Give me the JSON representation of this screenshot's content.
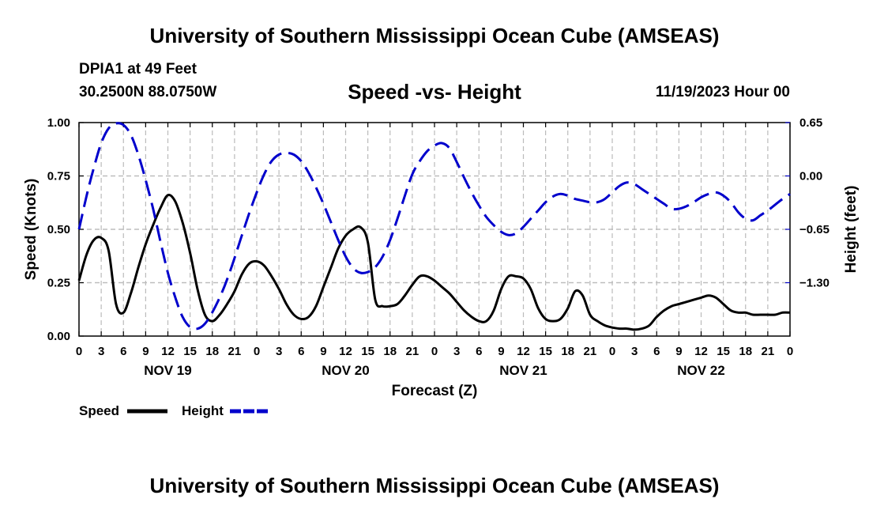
{
  "header": {
    "title": "University of Southern Mississippi Ocean Cube (AMSEAS)",
    "station": "DPIA1 at 49 Feet",
    "coords": "30.2500N  88.0750W",
    "subtitle": "Speed -vs- Height",
    "datetime": "11/19/2023 Hour 00"
  },
  "footer": {
    "title": "University of Southern Mississippi Ocean Cube (AMSEAS)"
  },
  "chart_data": {
    "type": "line",
    "title": "Speed -vs- Height",
    "xlabel": "Forecast (Z)",
    "ylabel": "Speed (Knots)",
    "y2label": "Height (feet)",
    "xlim": [
      0,
      96
    ],
    "ylim": [
      0,
      1
    ],
    "y2lim": [
      -1.95,
      0.65
    ],
    "grid": true,
    "x_ticks": [
      0,
      3,
      6,
      9,
      12,
      15,
      18,
      21,
      24,
      27,
      30,
      33,
      36,
      39,
      42,
      45,
      48,
      51,
      54,
      57,
      60,
      63,
      66,
      69,
      72,
      75,
      78,
      81,
      84,
      87,
      90,
      93,
      96
    ],
    "x_tick_labels": [
      "0",
      "3",
      "6",
      "9",
      "12",
      "15",
      "18",
      "21",
      "0",
      "3",
      "6",
      "9",
      "12",
      "15",
      "18",
      "21",
      "0",
      "3",
      "6",
      "9",
      "12",
      "15",
      "18",
      "21",
      "0",
      "3",
      "6",
      "9",
      "12",
      "15",
      "18",
      "21",
      "0"
    ],
    "day_labels": [
      {
        "hour": 12,
        "label": "NOV 19"
      },
      {
        "hour": 36,
        "label": "NOV 20"
      },
      {
        "hour": 60,
        "label": "NOV 21"
      },
      {
        "hour": 84,
        "label": "NOV 22"
      }
    ],
    "y_ticks": [
      0,
      0.25,
      0.5,
      0.75,
      1.0
    ],
    "y_tick_labels": [
      "0.00",
      "0.25",
      "0.50",
      "0.75",
      "1.00"
    ],
    "y2_ticks": [
      0.65,
      0,
      -0.65,
      -1.3
    ],
    "y2_tick_labels": [
      "0.65",
      "0.00",
      "−0.65",
      "−1.30"
    ],
    "legend": {
      "position": "bottom-left",
      "speed_label": "Speed",
      "height_label": "Height"
    },
    "series": [
      {
        "name": "Speed",
        "axis": "left",
        "color": "#000000",
        "dash": "solid",
        "x": [
          0,
          1,
          2,
          3,
          4,
          5,
          6,
          7,
          8,
          9,
          10,
          11,
          12,
          13,
          14,
          15,
          16,
          17,
          18,
          19,
          20,
          21,
          22,
          23,
          24,
          25,
          26,
          27,
          28,
          29,
          30,
          31,
          32,
          33,
          34,
          35,
          36,
          37,
          38,
          39,
          40,
          41,
          42,
          43,
          44,
          45,
          46,
          47,
          48,
          49,
          50,
          51,
          52,
          53,
          54,
          55,
          56,
          57,
          58,
          59,
          60,
          61,
          62,
          63,
          64,
          65,
          66,
          67,
          68,
          69,
          70,
          71,
          72,
          73,
          74,
          75,
          76,
          77,
          78,
          79,
          80,
          81,
          82,
          83,
          84,
          85,
          86,
          87,
          88,
          89,
          90,
          91,
          92,
          93,
          94,
          95,
          96
        ],
        "values": [
          0.26,
          0.38,
          0.45,
          0.46,
          0.4,
          0.15,
          0.11,
          0.2,
          0.32,
          0.43,
          0.52,
          0.6,
          0.66,
          0.63,
          0.53,
          0.39,
          0.22,
          0.1,
          0.07,
          0.1,
          0.15,
          0.21,
          0.29,
          0.34,
          0.35,
          0.33,
          0.28,
          0.22,
          0.15,
          0.1,
          0.08,
          0.09,
          0.14,
          0.23,
          0.32,
          0.41,
          0.47,
          0.5,
          0.51,
          0.44,
          0.17,
          0.14,
          0.14,
          0.15,
          0.19,
          0.24,
          0.28,
          0.28,
          0.26,
          0.23,
          0.2,
          0.16,
          0.12,
          0.09,
          0.07,
          0.07,
          0.12,
          0.22,
          0.28,
          0.28,
          0.27,
          0.22,
          0.13,
          0.08,
          0.07,
          0.08,
          0.13,
          0.21,
          0.19,
          0.1,
          0.07,
          0.05,
          0.04,
          0.035,
          0.035,
          0.03,
          0.035,
          0.05,
          0.09,
          0.12,
          0.14,
          0.15,
          0.16,
          0.17,
          0.18,
          0.19,
          0.18,
          0.15,
          0.12,
          0.11,
          0.11,
          0.1,
          0.1,
          0.1,
          0.1,
          0.11,
          0.11
        ]
      },
      {
        "name": "Height",
        "axis": "right",
        "color": "#0000cc",
        "dash": "dashed",
        "x": [
          0,
          1,
          2,
          3,
          4,
          5,
          6,
          7,
          8,
          9,
          10,
          11,
          12,
          13,
          14,
          15,
          16,
          17,
          18,
          19,
          20,
          21,
          22,
          23,
          24,
          25,
          26,
          27,
          28,
          29,
          30,
          31,
          32,
          33,
          34,
          35,
          36,
          37,
          38,
          39,
          40,
          41,
          42,
          43,
          44,
          45,
          46,
          47,
          48,
          49,
          50,
          51,
          52,
          53,
          54,
          55,
          56,
          57,
          58,
          59,
          60,
          61,
          62,
          63,
          64,
          65,
          66,
          67,
          68,
          69,
          70,
          71,
          72,
          73,
          74,
          75,
          76,
          77,
          78,
          79,
          80,
          81,
          82,
          83,
          84,
          85,
          86,
          87,
          88,
          89,
          90,
          91,
          92,
          93,
          94,
          95,
          96
        ],
        "values": [
          -0.65,
          -0.25,
          0.1,
          0.4,
          0.58,
          0.64,
          0.62,
          0.5,
          0.26,
          -0.05,
          -0.4,
          -0.8,
          -1.18,
          -1.48,
          -1.72,
          -1.84,
          -1.86,
          -1.8,
          -1.66,
          -1.48,
          -1.26,
          -1.0,
          -0.72,
          -0.45,
          -0.2,
          0.02,
          0.18,
          0.26,
          0.28,
          0.26,
          0.18,
          0.04,
          -0.14,
          -0.34,
          -0.56,
          -0.78,
          -0.98,
          -1.12,
          -1.18,
          -1.17,
          -1.11,
          -0.98,
          -0.78,
          -0.52,
          -0.24,
          0.02,
          0.18,
          0.3,
          0.37,
          0.4,
          0.34,
          0.17,
          -0.02,
          -0.2,
          -0.36,
          -0.5,
          -0.6,
          -0.68,
          -0.72,
          -0.7,
          -0.62,
          -0.52,
          -0.42,
          -0.32,
          -0.25,
          -0.22,
          -0.24,
          -0.28,
          -0.3,
          -0.32,
          -0.32,
          -0.28,
          -0.2,
          -0.12,
          -0.08,
          -0.1,
          -0.16,
          -0.22,
          -0.28,
          -0.34,
          -0.4,
          -0.4,
          -0.37,
          -0.32,
          -0.26,
          -0.22,
          -0.2,
          -0.24,
          -0.32,
          -0.44,
          -0.52,
          -0.54,
          -0.48,
          -0.42,
          -0.35,
          -0.28,
          -0.22
        ]
      }
    ]
  }
}
